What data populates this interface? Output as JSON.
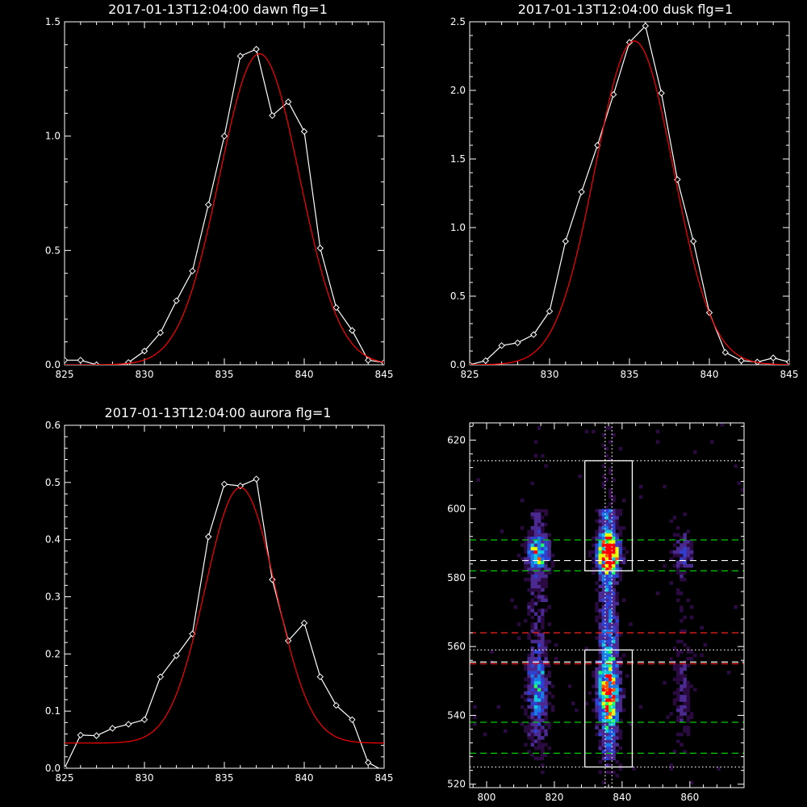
{
  "chart_data": [
    {
      "id": "dawn",
      "type": "line",
      "title": "2017-01-13T12:04:00 dawn flg=1",
      "xlim": [
        825,
        845
      ],
      "ylim": [
        0,
        1.5
      ],
      "xticks": [
        825,
        830,
        835,
        840,
        845
      ],
      "yticks": [
        0.0,
        0.5,
        1.0,
        1.5
      ],
      "ytick_labels": [
        "0.0",
        "0.5",
        "1.0",
        "1.5"
      ],
      "series": [
        {
          "style": "data",
          "color": "#ffffff",
          "marker": "diamond",
          "x": [
            825,
            826,
            827,
            828,
            829,
            830,
            831,
            832,
            833,
            834,
            835,
            836,
            837,
            838,
            839,
            840,
            841,
            842,
            843,
            844,
            845
          ],
          "y": [
            0.02,
            0.02,
            0.0,
            -0.01,
            0.01,
            0.06,
            0.14,
            0.28,
            0.41,
            0.7,
            1.0,
            1.35,
            1.38,
            1.09,
            1.15,
            1.02,
            0.51,
            0.25,
            0.15,
            0.02,
            0.01
          ]
        },
        {
          "style": "fit",
          "color": "#ff0000",
          "gauss": {
            "a": 1.36,
            "mu": 837.2,
            "sigma": 2.5,
            "b": 0.0
          }
        }
      ]
    },
    {
      "id": "dusk",
      "type": "line",
      "title": "2017-01-13T12:04:00 dusk flg=1",
      "xlim": [
        825,
        845
      ],
      "ylim": [
        0,
        2.5
      ],
      "xticks": [
        825,
        830,
        835,
        840,
        845
      ],
      "yticks": [
        0.0,
        0.5,
        1.0,
        1.5,
        2.0,
        2.5
      ],
      "ytick_labels": [
        "0.0",
        "0.5",
        "1.0",
        "1.5",
        "2.0",
        "2.5"
      ],
      "series": [
        {
          "style": "data",
          "color": "#ffffff",
          "marker": "diamond",
          "x": [
            825,
            826,
            827,
            828,
            829,
            830,
            831,
            832,
            833,
            834,
            835,
            836,
            837,
            838,
            839,
            840,
            841,
            842,
            843,
            844,
            845
          ],
          "y": [
            0.0,
            0.03,
            0.14,
            0.16,
            0.22,
            0.39,
            0.9,
            1.26,
            1.6,
            1.97,
            2.35,
            2.47,
            1.98,
            1.35,
            0.9,
            0.38,
            0.09,
            0.03,
            0.02,
            0.05,
            0.02
          ]
        },
        {
          "style": "fit",
          "color": "#ff0000",
          "gauss": {
            "a": 2.36,
            "mu": 835.3,
            "sigma": 2.45,
            "b": 0.0
          }
        }
      ]
    },
    {
      "id": "aurora",
      "type": "line",
      "title": "2017-01-13T12:04:00 aurora flg=1",
      "xlim": [
        825,
        845
      ],
      "ylim": [
        0,
        0.6
      ],
      "xticks": [
        825,
        830,
        835,
        840,
        845
      ],
      "yticks": [
        0.0,
        0.1,
        0.2,
        0.3,
        0.4,
        0.5,
        0.6
      ],
      "ytick_labels": [
        "0.0",
        "0.1",
        "0.2",
        "0.3",
        "0.4",
        "0.5",
        "0.6"
      ],
      "series": [
        {
          "style": "data",
          "color": "#ffffff",
          "marker": "diamond",
          "x": [
            825,
            826,
            827,
            828,
            829,
            830,
            831,
            832,
            833,
            834,
            835,
            836,
            837,
            838,
            839,
            840,
            841,
            842,
            843,
            844,
            845
          ],
          "y": [
            0.0,
            0.058,
            0.057,
            0.07,
            0.077,
            0.085,
            0.16,
            0.197,
            0.235,
            0.405,
            0.497,
            0.494,
            0.506,
            0.33,
            0.223,
            0.254,
            0.16,
            0.11,
            0.085,
            0.01,
            -0.005
          ]
        },
        {
          "style": "fit",
          "color": "#ff0000",
          "gauss": {
            "a": 0.447,
            "mu": 836.0,
            "sigma": 2.2,
            "b": 0.044
          }
        }
      ]
    },
    {
      "id": "spectrogram",
      "type": "heatmap",
      "xlim": [
        795,
        876
      ],
      "ylim": [
        519,
        625
      ],
      "xticks": [
        800,
        820,
        840,
        860
      ],
      "yticks": [
        520,
        540,
        560,
        580,
        600,
        620
      ],
      "colormap": [
        "#000000",
        "#2a0a40",
        "#4a2a90",
        "#2f3fd0",
        "#1a7be8",
        "#12c6e0",
        "#22ff66",
        "#e6ff00",
        "#ff5500",
        "#ff0000"
      ],
      "emission_columns": [
        {
          "x": 815,
          "halfwidth": 3.2,
          "amplitude": 0.5
        },
        {
          "x": 836,
          "halfwidth": 3.0,
          "amplitude": 1.0
        },
        {
          "x": 858,
          "halfwidth": 3.0,
          "amplitude": 0.22
        }
      ],
      "emission_bands": [
        {
          "y": 587,
          "halfwidth": 4.5,
          "amplitude": 1.0
        },
        {
          "y": 547,
          "halfwidth": 11,
          "amplitude": 0.6
        }
      ],
      "boxes": [
        {
          "x0": 829,
          "x1": 843,
          "y0": 582,
          "y1": 614
        },
        {
          "x0": 829,
          "x1": 843,
          "y0": 525,
          "y1": 559
        }
      ],
      "vlines": [
        {
          "x": 835,
          "color": "#ffffff",
          "style": "dotted"
        },
        {
          "x": 837,
          "color": "#ffffff",
          "style": "dotted"
        }
      ],
      "hlines": [
        {
          "y": 614,
          "color": "#ffffff",
          "style": "dotted"
        },
        {
          "y": 591,
          "color": "#00cc00",
          "style": "dashed"
        },
        {
          "y": 585,
          "color": "#ffffff",
          "style": "dashed"
        },
        {
          "y": 582,
          "color": "#00cc00",
          "style": "dashed"
        },
        {
          "y": 564,
          "color": "#ff2020",
          "style": "dashed"
        },
        {
          "y": 559,
          "color": "#ffffff",
          "style": "dotted"
        },
        {
          "y": 555.5,
          "color": "#ffffff",
          "style": "dashed"
        },
        {
          "y": 555,
          "color": "#ff2020",
          "style": "dashed"
        },
        {
          "y": 538,
          "color": "#00cc00",
          "style": "dashed"
        },
        {
          "y": 529,
          "color": "#00cc00",
          "style": "dashed"
        },
        {
          "y": 525,
          "color": "#ffffff",
          "style": "dotted"
        }
      ]
    }
  ]
}
